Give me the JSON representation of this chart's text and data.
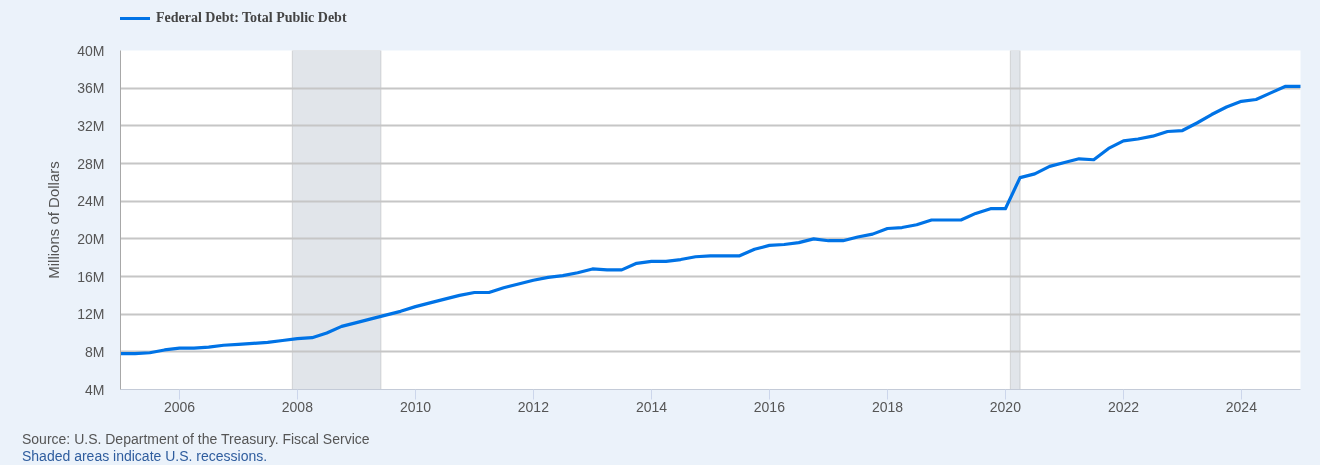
{
  "chart_data": {
    "type": "line",
    "ylabel": "Millions of Dollars",
    "annotations": [
      "Source: U.S. Department of the Treasury. Fiscal Service",
      "Shaded areas indicate U.S. recessions."
    ],
    "x": [
      "2005-01",
      "2005-04",
      "2005-07",
      "2005-10",
      "2006-01",
      "2006-04",
      "2006-07",
      "2006-10",
      "2007-01",
      "2007-04",
      "2007-07",
      "2007-10",
      "2008-01",
      "2008-04",
      "2008-07",
      "2008-10",
      "2009-01",
      "2009-04",
      "2009-07",
      "2009-10",
      "2010-01",
      "2010-04",
      "2010-07",
      "2010-10",
      "2011-01",
      "2011-04",
      "2011-07",
      "2011-10",
      "2012-01",
      "2012-04",
      "2012-07",
      "2012-10",
      "2013-01",
      "2013-04",
      "2013-07",
      "2013-10",
      "2014-01",
      "2014-04",
      "2014-07",
      "2014-10",
      "2015-01",
      "2015-04",
      "2015-07",
      "2015-10",
      "2016-01",
      "2016-04",
      "2016-07",
      "2016-10",
      "2017-01",
      "2017-04",
      "2017-07",
      "2017-10",
      "2018-01",
      "2018-04",
      "2018-07",
      "2018-10",
      "2019-01",
      "2019-04",
      "2019-07",
      "2019-10",
      "2020-01",
      "2020-04",
      "2020-07",
      "2020-10",
      "2021-01",
      "2021-04",
      "2021-07",
      "2021-10",
      "2022-01",
      "2022-04",
      "2022-07",
      "2022-10",
      "2023-01",
      "2023-04",
      "2023-07",
      "2023-10",
      "2024-01",
      "2024-04",
      "2024-07",
      "2024-10",
      "2025-01"
    ],
    "series": [
      {
        "name": "Federal Debt: Total Public Debt",
        "color": "#0073e6",
        "values": [
          7800000,
          7800000,
          7900000,
          8200000,
          8400000,
          8400000,
          8500000,
          8700000,
          8800000,
          8900000,
          9000000,
          9200000,
          9400000,
          9500000,
          10000000,
          10700000,
          11100000,
          11500000,
          11900000,
          12300000,
          12800000,
          13200000,
          13600000,
          14000000,
          14300000,
          14300000,
          14800000,
          15200000,
          15600000,
          15900000,
          16100000,
          16400000,
          16800000,
          16700000,
          16700000,
          17400000,
          17600000,
          17600000,
          17800000,
          18100000,
          18200000,
          18200000,
          18200000,
          18900000,
          19300000,
          19400000,
          19600000,
          20000000,
          19800000,
          19800000,
          20200000,
          20500000,
          21100000,
          21200000,
          21500000,
          22000000,
          22000000,
          22000000,
          22700000,
          23200000,
          23200000,
          26500000,
          26900000,
          27700000,
          28100000,
          28500000,
          28400000,
          29600000,
          30400000,
          30600000,
          30900000,
          31400000,
          31500000,
          32300000,
          33200000,
          34000000,
          34600000,
          34800000,
          35500000,
          36200000,
          36200000
        ]
      }
    ],
    "xlim": [
      "2005-01",
      "2025-01"
    ],
    "xticks": [
      {
        "value": "2006",
        "label": "2006"
      },
      {
        "value": "2008",
        "label": "2008"
      },
      {
        "value": "2010",
        "label": "2010"
      },
      {
        "value": "2012",
        "label": "2012"
      },
      {
        "value": "2014",
        "label": "2014"
      },
      {
        "value": "2016",
        "label": "2016"
      },
      {
        "value": "2018",
        "label": "2018"
      },
      {
        "value": "2020",
        "label": "2020"
      },
      {
        "value": "2022",
        "label": "2022"
      },
      {
        "value": "2024",
        "label": "2024"
      }
    ],
    "ylim": [
      4000000,
      40000000
    ],
    "yticks": [
      {
        "value": 4000000,
        "label": "4M"
      },
      {
        "value": 8000000,
        "label": "8M"
      },
      {
        "value": 12000000,
        "label": "12M"
      },
      {
        "value": 16000000,
        "label": "16M"
      },
      {
        "value": 20000000,
        "label": "20M"
      },
      {
        "value": 24000000,
        "label": "24M"
      },
      {
        "value": 28000000,
        "label": "28M"
      },
      {
        "value": 32000000,
        "label": "32M"
      },
      {
        "value": 36000000,
        "label": "36M"
      },
      {
        "value": 40000000,
        "label": "40M"
      }
    ],
    "bands": [
      {
        "axis": "x",
        "from": "2007-12-01",
        "to": "2009-06-01",
        "color": "#e1e5ea"
      },
      {
        "axis": "x",
        "from": "2020-02-01",
        "to": "2020-04-01",
        "color": "#e1e5ea"
      }
    ],
    "grid": "y",
    "legend": "top left"
  }
}
